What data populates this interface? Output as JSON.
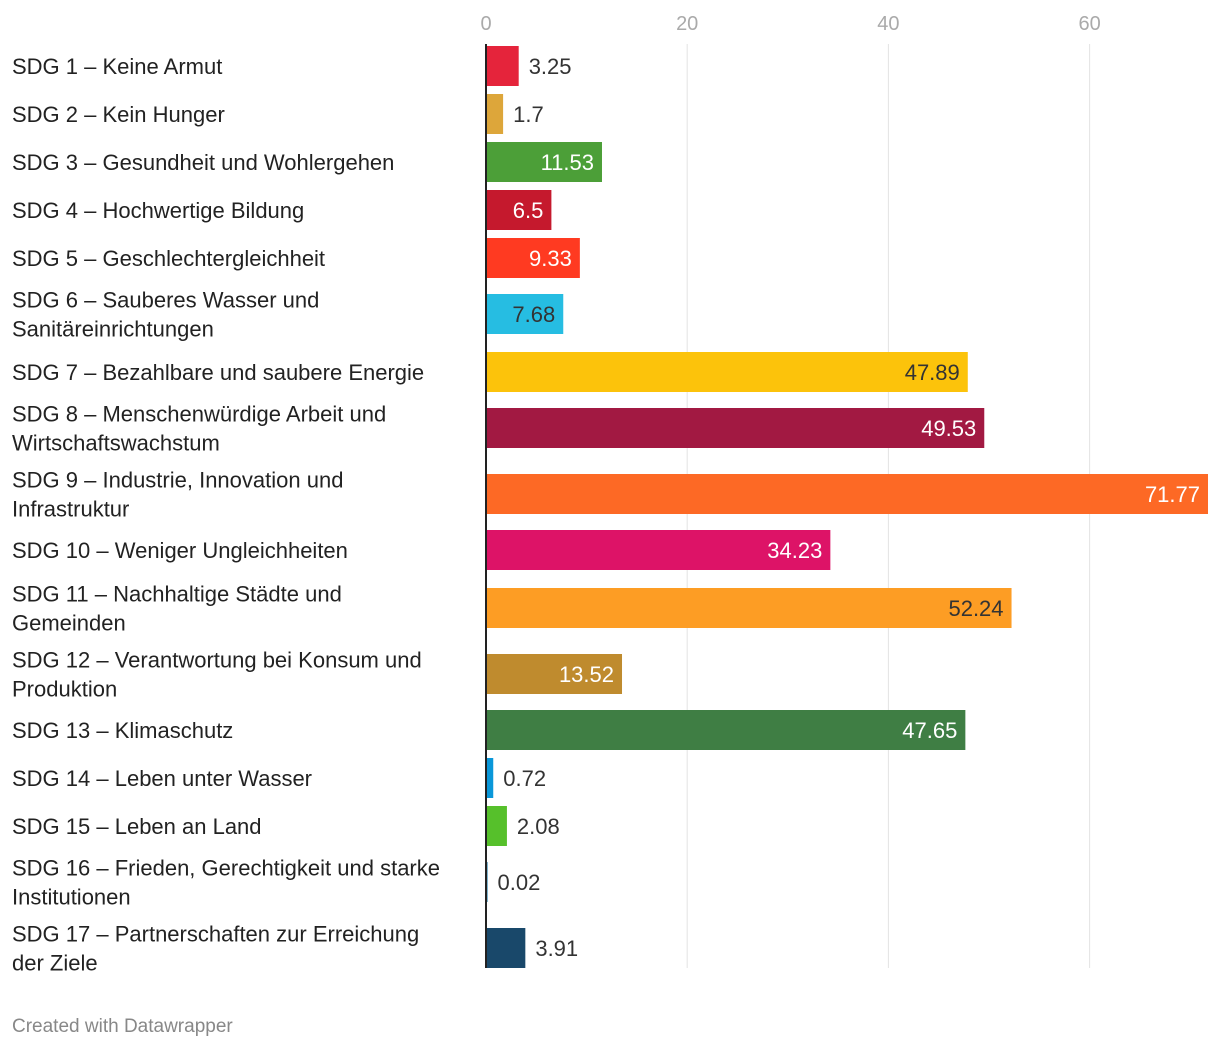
{
  "chart_data": {
    "type": "bar",
    "orientation": "horizontal",
    "title": "",
    "xlabel": "",
    "ylabel": "",
    "xlim": [
      0,
      72
    ],
    "x_ticks": [
      0,
      20,
      40,
      60
    ],
    "grid": true,
    "legend": "none",
    "categories": [
      "SDG 1 – Keine Armut",
      "SDG 2 – Kein Hunger",
      "SDG 3 – Gesundheit und Wohlergehen",
      "SDG 4 – Hochwertige Bildung",
      "SDG 5 – Geschlechtergleichheit",
      "SDG 6 – Sauberes Wasser und Sanitäreinrichtungen",
      "SDG 7 – Bezahlbare und saubere Energie",
      "SDG 8 – Menschenwürdige Arbeit und Wirtschaftswachstum",
      "SDG 9 – Industrie, Innovation und Infrastruktur",
      "SDG 10 – Weniger Ungleichheiten",
      "SDG 11 – Nachhaltige Städte und Gemeinden",
      "SDG 12 – Verantwortung bei Konsum und Produktion",
      "SDG 13 – Klimaschutz",
      "SDG 14 – Leben unter Wasser",
      "SDG 15 – Leben an Land",
      "SDG 16 – Frieden, Gerechtigkeit und starke Institutionen",
      "SDG 17 – Partnerschaften zur Erreichung der Ziele"
    ],
    "category_lines": [
      [
        "SDG 1 – Keine Armut"
      ],
      [
        "SDG 2 – Kein Hunger"
      ],
      [
        "SDG 3 – Gesundheit und Wohlergehen"
      ],
      [
        "SDG 4 – Hochwertige Bildung"
      ],
      [
        "SDG 5 – Geschlechtergleichheit"
      ],
      [
        "SDG 6 – Sauberes Wasser und",
        "Sanitäreinrichtungen"
      ],
      [
        "SDG 7 – Bezahlbare und saubere Energie"
      ],
      [
        "SDG 8 – Menschenwürdige Arbeit und",
        "Wirtschaftswachstum"
      ],
      [
        "SDG 9 – Industrie, Innovation und",
        "Infrastruktur"
      ],
      [
        "SDG 10 – Weniger Ungleichheiten"
      ],
      [
        "SDG 11 – Nachhaltige Städte und",
        "Gemeinden"
      ],
      [
        "SDG 12 – Verantwortung bei Konsum und",
        "Produktion"
      ],
      [
        "SDG 13 – Klimaschutz"
      ],
      [
        "SDG 14 – Leben unter Wasser"
      ],
      [
        "SDG 15 – Leben an Land"
      ],
      [
        "SDG 16 – Frieden, Gerechtigkeit und starke",
        "Institutionen"
      ],
      [
        "SDG 17 – Partnerschaften zur Erreichung",
        "der Ziele"
      ]
    ],
    "values": [
      3.25,
      1.7,
      11.53,
      6.5,
      9.33,
      7.68,
      47.89,
      49.53,
      71.77,
      34.23,
      52.24,
      13.52,
      47.65,
      0.72,
      2.08,
      0.02,
      3.91
    ],
    "value_labels": [
      "3.25",
      "1.7",
      "11.53",
      "6.5",
      "9.33",
      "7.68",
      "47.89",
      "49.53",
      "71.77",
      "34.23",
      "52.24",
      "13.52",
      "47.65",
      "0.72",
      "2.08",
      "0.02",
      "3.91"
    ],
    "colors": [
      "#e5243b",
      "#dda63a",
      "#4c9f38",
      "#c5192d",
      "#ff3a21",
      "#26bde2",
      "#fcc30b",
      "#a21942",
      "#fd6925",
      "#dd1367",
      "#fd9d24",
      "#bf8b2e",
      "#3f7e44",
      "#0a97d9",
      "#56c02b",
      "#00689d",
      "#19486a"
    ],
    "label_inside": [
      false,
      false,
      true,
      true,
      true,
      true,
      true,
      true,
      true,
      true,
      true,
      true,
      true,
      false,
      false,
      false,
      false
    ],
    "label_colors": [
      "#333333",
      "#333333",
      "#ffffff",
      "#ffffff",
      "#ffffff",
      "#333333",
      "#333333",
      "#ffffff",
      "#ffffff",
      "#ffffff",
      "#333333",
      "#ffffff",
      "#ffffff",
      "#333333",
      "#333333",
      "#333333",
      "#333333"
    ]
  },
  "footer": {
    "credit": "Created with Datawrapper"
  }
}
